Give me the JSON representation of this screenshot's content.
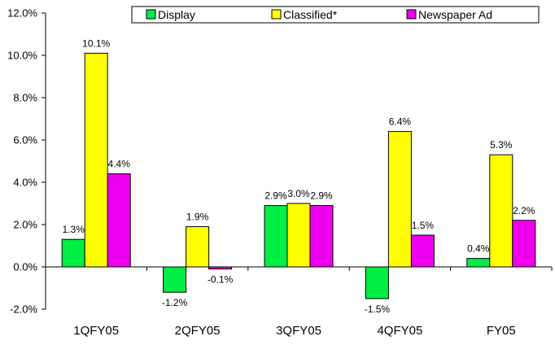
{
  "chart_data": {
    "type": "bar",
    "title": "",
    "xlabel": "",
    "ylabel": "",
    "categories": [
      "1QFY05",
      "2QFY05",
      "3QFY05",
      "4QFY05",
      "FY05"
    ],
    "series": [
      {
        "name": "Display",
        "color": "#00ee44",
        "values": [
          1.3,
          -1.2,
          2.9,
          -1.5,
          0.4
        ],
        "labels": [
          "1.3%",
          "-1.2%",
          "2.9%",
          "-1.5%",
          "0.4%"
        ]
      },
      {
        "name": "Classified*",
        "color": "#ffff00",
        "values": [
          10.1,
          1.9,
          3.0,
          6.4,
          5.3
        ],
        "labels": [
          "10.1%",
          "1.9%",
          "3.0%",
          "6.4%",
          "5.3%"
        ]
      },
      {
        "name": "Newspaper Ad",
        "color": "#ee00ee",
        "values": [
          4.4,
          -0.1,
          2.9,
          1.5,
          2.2
        ],
        "labels": [
          "4.4%",
          "-0.1%",
          "2.9%",
          "1.5%",
          "2.2%"
        ]
      }
    ],
    "ylim": [
      -2.0,
      12.0
    ],
    "yticks": [
      -2.0,
      0.0,
      2.0,
      4.0,
      6.0,
      8.0,
      10.0,
      12.0
    ],
    "ytick_labels": [
      "-2.0%",
      "0.0%",
      "2.0%",
      "4.0%",
      "6.0%",
      "8.0%",
      "10.0%",
      "12.0%"
    ],
    "grid": false,
    "legend_position": "top"
  }
}
